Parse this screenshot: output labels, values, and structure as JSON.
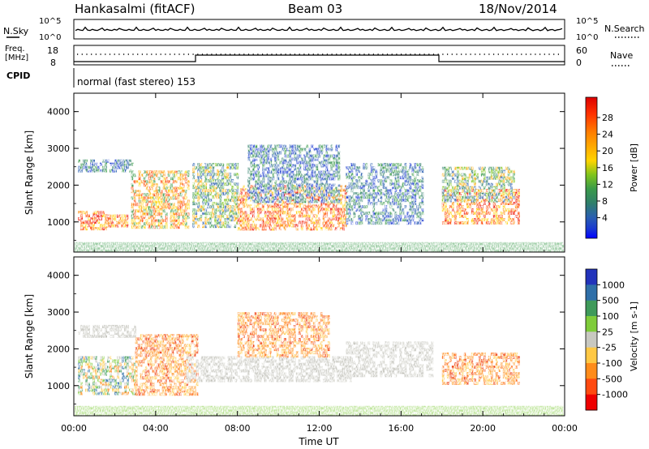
{
  "header": {
    "station": "Hankasalmi (fitACF)",
    "beam": "Beam 03",
    "date": "18/Nov/2014"
  },
  "noise_panel": {
    "left_label": "N.Sky",
    "right_label": "N.Search",
    "tick_top": "10^5",
    "tick_bottom": "10^0",
    "series_color": "#000000"
  },
  "freq_panel": {
    "left_label_line1": "Freq.",
    "left_label_line2": "[MHz]",
    "left_ticks": [
      "18",
      "8"
    ],
    "right_ticks": [
      "60",
      "0"
    ],
    "right_label": "Nave"
  },
  "cpid_panel": {
    "label": "CPID",
    "text": "normal (fast stereo) 153"
  },
  "x_axis": {
    "label": "Time UT",
    "ticks": [
      "00:00",
      "04:00",
      "08:00",
      "12:00",
      "16:00",
      "20:00",
      "00:00"
    ]
  },
  "chart_data": [
    {
      "type": "heatmap",
      "name": "power",
      "ylabel": "Slant Range [km]",
      "yticks": [
        "4000",
        "3000",
        "2000",
        "1000"
      ],
      "ylim": [
        180,
        4500
      ],
      "xlim": [
        0,
        24
      ],
      "colorbar": {
        "label": "Power [dB]",
        "ticks": [
          "28",
          "24",
          "20",
          "16",
          "12",
          "8",
          "4"
        ],
        "colors": [
          "#dd0000",
          "#ff3300",
          "#ff7f00",
          "#ffaa00",
          "#ffd400",
          "#7fc41c",
          "#3a9a4a",
          "#2f7f6a",
          "#2a5fb0",
          "#1a3ad0",
          "#0000ff"
        ]
      },
      "echo_regions": [
        {
          "t": [
            0.2,
            2.9
          ],
          "r": [
            2350,
            2700
          ],
          "level": "blue"
        },
        {
          "t": [
            0.2,
            1.6
          ],
          "r": [
            800,
            1300
          ],
          "level": "red"
        },
        {
          "t": [
            1.6,
            2.6
          ],
          "r": [
            900,
            1200
          ],
          "level": "red"
        },
        {
          "t": [
            2.8,
            5.6
          ],
          "r": [
            900,
            2400
          ],
          "level": "orange"
        },
        {
          "t": [
            5.8,
            8.0
          ],
          "r": [
            900,
            2600
          ],
          "level": "green"
        },
        {
          "t": [
            8.0,
            13.3
          ],
          "r": [
            800,
            2000
          ],
          "level": "red"
        },
        {
          "t": [
            8.5,
            13.0
          ],
          "r": [
            1600,
            3100
          ],
          "level": "blue"
        },
        {
          "t": [
            13.3,
            17.0
          ],
          "r": [
            1000,
            2600
          ],
          "level": "blue"
        },
        {
          "t": [
            18.0,
            21.8
          ],
          "r": [
            1000,
            1900
          ],
          "level": "red"
        },
        {
          "t": [
            18.0,
            21.5
          ],
          "r": [
            1600,
            2500
          ],
          "level": "green"
        }
      ]
    },
    {
      "type": "heatmap",
      "name": "velocity",
      "ylabel": "Slant Range [km]",
      "yticks": [
        "4000",
        "3000",
        "2000",
        "1000"
      ],
      "ylim": [
        180,
        4500
      ],
      "xlim": [
        0,
        24
      ],
      "colorbar": {
        "label": "Velocity [m s-1]",
        "ticks": [
          "1000",
          "500",
          "100",
          "25",
          "-25",
          "-100",
          "-500",
          "-1000"
        ],
        "colors": [
          "#2233bb",
          "#2f6fa8",
          "#3f9a5a",
          "#7fcc3a",
          "#c8c8c0",
          "#ffc844",
          "#ff8c1a",
          "#ff4a10",
          "#ee0000"
        ]
      },
      "echo_regions": [
        {
          "t": [
            0.2,
            3.0
          ],
          "r": [
            2350,
            2650
          ],
          "level": "ground"
        },
        {
          "t": [
            0.2,
            3.0
          ],
          "r": [
            800,
            1800
          ],
          "level": "mixed-green"
        },
        {
          "t": [
            3.0,
            6.0
          ],
          "r": [
            800,
            2400
          ],
          "level": "orange"
        },
        {
          "t": [
            5.5,
            13.5
          ],
          "r": [
            1100,
            1800
          ],
          "level": "ground"
        },
        {
          "t": [
            8.0,
            12.5
          ],
          "r": [
            1800,
            3000
          ],
          "level": "orange"
        },
        {
          "t": [
            13.3,
            17.5
          ],
          "r": [
            1300,
            2200
          ],
          "level": "ground"
        },
        {
          "t": [
            18.0,
            21.8
          ],
          "r": [
            1100,
            1900
          ],
          "level": "orange"
        }
      ]
    }
  ]
}
